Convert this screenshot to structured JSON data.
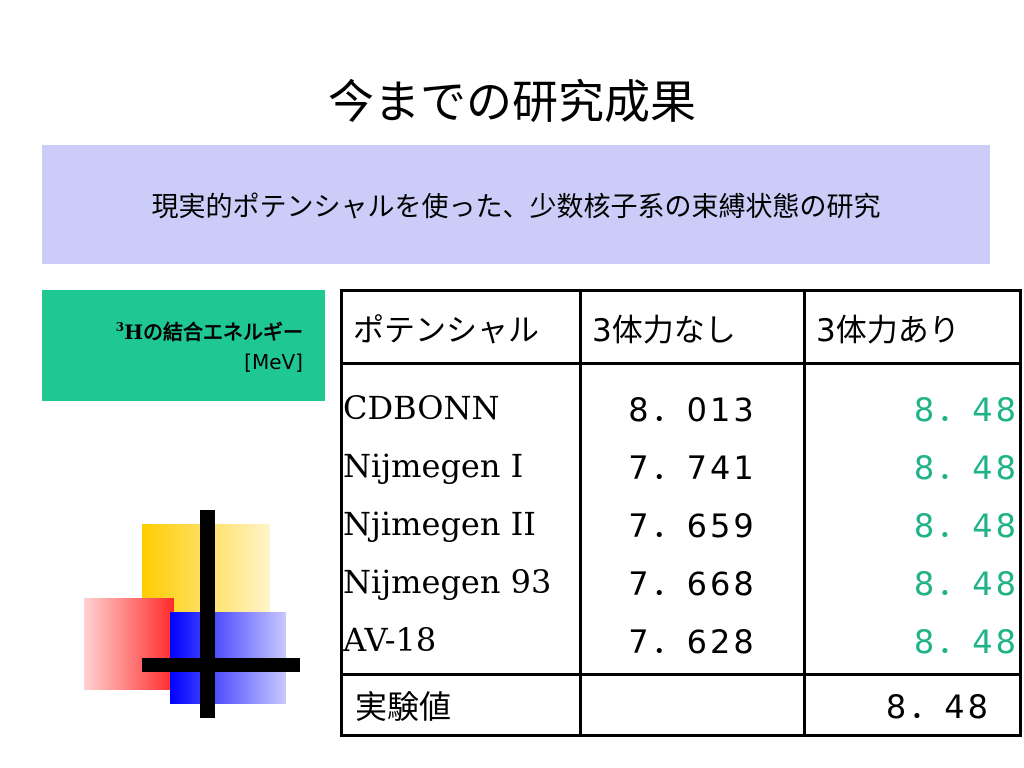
{
  "slide": {
    "title": "今までの研究成果",
    "subtitle": "現実的ポテンシャルを使った、少数核子系の束縛状態の研究"
  },
  "label": {
    "superscript": "3",
    "nucleus": "H",
    "text": "の結合エネルギー",
    "unit": "[MeV]"
  },
  "table": {
    "headers": [
      "ポテンシャル",
      "3体力なし",
      "3体力あり"
    ],
    "rows": [
      {
        "name": "CDBONN",
        "without": "8．013",
        "with": "8．48"
      },
      {
        "name": "Nijmegen I",
        "without": "7．741",
        "with": "8．48"
      },
      {
        "name": "Njimegen II",
        "without": "7．659",
        "with": "8．48"
      },
      {
        "name": "Nijmegen 93",
        "without": "7．668",
        "with": "8．48"
      },
      {
        "name": "AV-18",
        "without": "7．628",
        "with": "8．48"
      }
    ],
    "experiment": {
      "name": "実験値",
      "without": "",
      "with": "8．48"
    }
  },
  "colors": {
    "subtitle_bg": "#ccccf8",
    "label_bg": "#1fc792",
    "with_three_body": "#1fb387"
  }
}
